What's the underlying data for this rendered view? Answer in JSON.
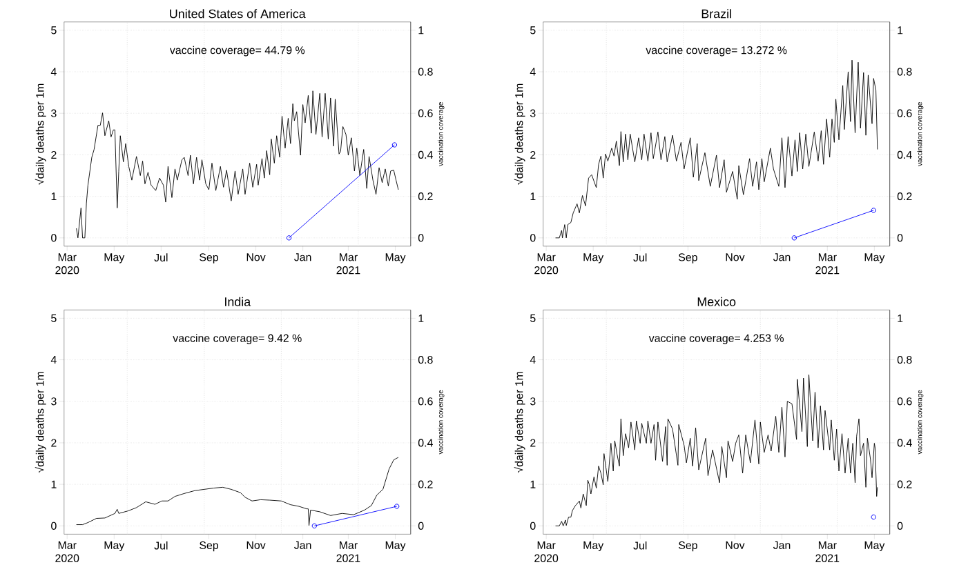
{
  "chart_data": [
    {
      "type": "line",
      "title": "United States of America",
      "ylabel": "√daily deaths per 1m",
      "y2label": "vaccination coverage",
      "annotations": [
        "vaccine coverage= 44.79 %"
      ],
      "xlim": [
        "2020-02-26",
        "2021-05-21"
      ],
      "xticks": [
        {
          "value": "2020-03-01",
          "label": "Mar 2020"
        },
        {
          "value": "2020-05-01",
          "label": "May"
        },
        {
          "value": "2020-07-01",
          "label": "Jul"
        },
        {
          "value": "2020-09-01",
          "label": "Sep"
        },
        {
          "value": "2020-11-01",
          "label": "Nov"
        },
        {
          "value": "2021-01-01",
          "label": "Jan"
        },
        {
          "value": "2021-03-01",
          "label": "Mar 2021"
        },
        {
          "value": "2021-05-01",
          "label": "May"
        }
      ],
      "ylim": [
        -0.2,
        5.2
      ],
      "yticks": [
        0,
        1,
        2,
        3,
        4,
        5
      ],
      "y2lim": [
        -0.04,
        1.04
      ],
      "y2ticks": [
        0,
        0.2,
        0.4,
        0.6,
        0.8,
        1
      ],
      "grid": "y",
      "ref_lines": [
        {
          "axis": "x",
          "value": "2020-05-18",
          "color": "#d3d3d3",
          "line_style": "dotted"
        },
        {
          "axis": "x",
          "value": "2020-08-26",
          "color": "#d3d3d3",
          "line_style": "dotted"
        },
        {
          "axis": "x",
          "value": "2020-12-04",
          "color": "#d3d3d3",
          "line_style": "dotted"
        },
        {
          "axis": "x",
          "value": "2021-03-14",
          "color": "#d3d3d3",
          "line_style": "dotted"
        }
      ],
      "series": [
        {
          "color": "#000000",
          "x": [
            "2020-03-13",
            "2020-03-15",
            "2020-03-19",
            "2020-03-21",
            "2020-03-24",
            "2020-03-26",
            "2020-03-28",
            "2020-04-02",
            "2020-04-05",
            "2020-04-10",
            "2020-04-13",
            "2020-04-16",
            "2020-04-19",
            "2020-04-24",
            "2020-04-27",
            "2020-04-30",
            "2020-05-02",
            "2020-05-05",
            "2020-05-07",
            "2020-05-09",
            "2020-05-13",
            "2020-05-16",
            "2020-05-20",
            "2020-05-24",
            "2020-05-30",
            "2020-06-04",
            "2020-06-07",
            "2020-06-10",
            "2020-06-14",
            "2020-06-18",
            "2020-06-24",
            "2020-06-29",
            "2020-07-04",
            "2020-07-07",
            "2020-07-10",
            "2020-07-15",
            "2020-07-19",
            "2020-07-22",
            "2020-07-28",
            "2020-07-31",
            "2020-08-05",
            "2020-08-08",
            "2020-08-12",
            "2020-08-16",
            "2020-08-20",
            "2020-08-23",
            "2020-08-28",
            "2020-09-01",
            "2020-09-05",
            "2020-09-10",
            "2020-09-16",
            "2020-09-20",
            "2020-09-24",
            "2020-09-30",
            "2020-10-05",
            "2020-10-09",
            "2020-10-15",
            "2020-10-18",
            "2020-10-24",
            "2020-10-28",
            "2020-11-02",
            "2020-11-04",
            "2020-11-09",
            "2020-11-12",
            "2020-11-15",
            "2020-11-19",
            "2020-11-21",
            "2020-11-25",
            "2020-11-28",
            "2020-12-02",
            "2020-12-05",
            "2020-12-09",
            "2020-12-13",
            "2020-12-16",
            "2020-12-19",
            "2020-12-21",
            "2020-12-24",
            "2020-12-29",
            "2021-01-01",
            "2021-01-04",
            "2021-01-08",
            "2021-01-12",
            "2021-01-14",
            "2021-01-18",
            "2021-01-23",
            "2021-01-26",
            "2021-01-30",
            "2021-02-03",
            "2021-02-06",
            "2021-02-10",
            "2021-02-12",
            "2021-02-17",
            "2021-02-19",
            "2021-02-22",
            "2021-02-26",
            "2021-03-01",
            "2021-03-05",
            "2021-03-09",
            "2021-03-12",
            "2021-03-16",
            "2021-03-21",
            "2021-03-25",
            "2021-03-28",
            "2021-04-02",
            "2021-04-06",
            "2021-04-10",
            "2021-04-14",
            "2021-04-18",
            "2021-04-22",
            "2021-04-25",
            "2021-04-29",
            "2021-05-02",
            "2021-05-05"
          ],
          "values": [
            0.23,
            0,
            0.72,
            0,
            0,
            0.83,
            1.27,
            1.94,
            2.13,
            2.71,
            2.71,
            3.01,
            2.46,
            2.82,
            2.43,
            2.6,
            2.6,
            0.72,
            1.6,
            2.46,
            1.83,
            2.27,
            1.72,
            1.39,
            1.96,
            1.5,
            1.85,
            1.3,
            1.58,
            1.27,
            1.14,
            1.44,
            1.27,
            0.86,
            1.72,
            0.97,
            1.66,
            1.39,
            1.88,
            1.94,
            1.5,
            1.99,
            1.3,
            1.94,
            1.39,
            1.88,
            1.3,
            1.16,
            1.8,
            1.14,
            1.72,
            1.22,
            1.63,
            0.89,
            1.61,
            1.05,
            1.66,
            1.05,
            1.8,
            1.22,
            1.77,
            1.27,
            1.91,
            1.44,
            2.1,
            1.52,
            2.38,
            1.8,
            2.46,
            1.94,
            2.93,
            2.16,
            2.88,
            2.27,
            3.23,
            2.82,
            3.04,
            1.99,
            3.21,
            2.77,
            3.43,
            2.52,
            3.54,
            2.49,
            3.48,
            2.43,
            3.48,
            2.38,
            3.37,
            2.21,
            3.34,
            2.02,
            2.08,
            2.68,
            2.49,
            1.99,
            2.41,
            1.61,
            2.16,
            1.5,
            2.13,
            1.19,
            1.96,
            1.39,
            1.05,
            1.69,
            1.33,
            1.66,
            1.25,
            1.61,
            1.63,
            1.39,
            1.16
          ]
        },
        {
          "color": "#0000ff",
          "axis": "y2",
          "marker": "circle",
          "x": [
            "2020-12-14",
            "2021-04-30"
          ],
          "values": [
            0,
            0.4479
          ]
        }
      ]
    },
    {
      "type": "line",
      "title": "Brazil",
      "ylabel": "√daily deaths per 1m",
      "y2label": "vaccination coverage",
      "annotations": [
        "vaccine coverage= 13.272 %"
      ],
      "xlim": [
        "2020-02-26",
        "2021-05-21"
      ],
      "xticks": [
        {
          "value": "2020-03-01",
          "label": "Mar 2020"
        },
        {
          "value": "2020-05-01",
          "label": "May"
        },
        {
          "value": "2020-07-01",
          "label": "Jul"
        },
        {
          "value": "2020-09-01",
          "label": "Sep"
        },
        {
          "value": "2020-11-01",
          "label": "Nov"
        },
        {
          "value": "2021-01-01",
          "label": "Jan"
        },
        {
          "value": "2021-03-01",
          "label": "Mar 2021"
        },
        {
          "value": "2021-05-01",
          "label": "May"
        }
      ],
      "ylim": [
        -0.2,
        5.2
      ],
      "yticks": [
        0,
        1,
        2,
        3,
        4,
        5
      ],
      "y2lim": [
        -0.04,
        1.04
      ],
      "y2ticks": [
        0,
        0.2,
        0.4,
        0.6,
        0.8,
        1
      ],
      "grid": "y",
      "ref_lines": [
        {
          "axis": "x",
          "value": "2020-05-18",
          "color": "#d3d3d3",
          "line_style": "dotted"
        },
        {
          "axis": "x",
          "value": "2020-08-26",
          "color": "#d3d3d3",
          "line_style": "dotted"
        },
        {
          "axis": "x",
          "value": "2020-12-04",
          "color": "#d3d3d3",
          "line_style": "dotted"
        },
        {
          "axis": "x",
          "value": "2021-03-14",
          "color": "#d3d3d3",
          "line_style": "dotted"
        }
      ],
      "series": [
        {
          "color": "#000000",
          "x": [
            "2020-03-13",
            "2020-03-18",
            "2020-03-21",
            "2020-03-22",
            "2020-03-25",
            "2020-03-27",
            "2020-03-29",
            "2020-04-02",
            "2020-04-05",
            "2020-04-10",
            "2020-04-13",
            "2020-04-17",
            "2020-04-21",
            "2020-04-25",
            "2020-04-29",
            "2020-05-05",
            "2020-05-08",
            "2020-05-11",
            "2020-05-14",
            "2020-05-17",
            "2020-05-20",
            "2020-05-25",
            "2020-05-28",
            "2020-05-31",
            "2020-06-04",
            "2020-06-06",
            "2020-06-09",
            "2020-06-12",
            "2020-06-15",
            "2020-06-18",
            "2020-06-24",
            "2020-06-29",
            "2020-07-03",
            "2020-07-06",
            "2020-07-11",
            "2020-07-15",
            "2020-07-18",
            "2020-07-24",
            "2020-07-28",
            "2020-08-02",
            "2020-08-05",
            "2020-08-12",
            "2020-08-17",
            "2020-08-23",
            "2020-08-27",
            "2020-09-04",
            "2020-09-08",
            "2020-09-13",
            "2020-09-15",
            "2020-09-23",
            "2020-09-30",
            "2020-10-08",
            "2020-10-12",
            "2020-10-18",
            "2020-10-21",
            "2020-10-29",
            "2020-11-04",
            "2020-11-06",
            "2020-11-12",
            "2020-11-20",
            "2020-11-24",
            "2020-11-29",
            "2020-12-02",
            "2020-12-06",
            "2020-12-09",
            "2020-12-17",
            "2020-12-21",
            "2020-12-28",
            "2021-01-01",
            "2021-01-05",
            "2021-01-09",
            "2021-01-14",
            "2021-01-18",
            "2021-01-21",
            "2021-01-24",
            "2021-01-28",
            "2021-02-01",
            "2021-02-05",
            "2021-02-12",
            "2021-02-17",
            "2021-02-21",
            "2021-02-24",
            "2021-02-28",
            "2021-03-04",
            "2021-03-07",
            "2021-03-10",
            "2021-03-12",
            "2021-03-16",
            "2021-03-21",
            "2021-03-23",
            "2021-03-28",
            "2021-03-31",
            "2021-04-02",
            "2021-04-06",
            "2021-04-10",
            "2021-04-13",
            "2021-04-17",
            "2021-04-20",
            "2021-04-23",
            "2021-04-28",
            "2021-04-30",
            "2021-05-03",
            "2021-05-05"
          ],
          "values": [
            0,
            0,
            0.18,
            0,
            0.32,
            0,
            0.32,
            0.37,
            0.6,
            0.82,
            0.6,
            1.02,
            0.77,
            1.44,
            1.52,
            1.21,
            1.77,
            1.97,
            1.44,
            2.02,
            1.85,
            2.16,
            1.97,
            2.33,
            1.74,
            2.56,
            1.83,
            2.5,
            1.88,
            2.5,
            1.83,
            2.41,
            1.88,
            2.5,
            1.85,
            2.53,
            1.91,
            2.55,
            1.88,
            2.44,
            1.83,
            2.47,
            1.85,
            2.3,
            1.66,
            2.41,
            1.46,
            2.27,
            1.38,
            2.05,
            1.24,
            1.99,
            1.21,
            1.88,
            1.1,
            1.6,
            0.93,
            1.74,
            1.04,
            1.91,
            1.24,
            1.83,
            1.16,
            1.91,
            1.35,
            2.16,
            1.66,
            1.24,
            2.41,
            1.21,
            2.44,
            1.49,
            2.36,
            1.6,
            2.53,
            1.66,
            2.5,
            1.72,
            2.55,
            1.85,
            2.58,
            1.77,
            2.86,
            1.94,
            2.86,
            2.3,
            3.34,
            2.36,
            3.67,
            2.61,
            4.0,
            2.8,
            4.28,
            2.53,
            4.23,
            2.64,
            3.98,
            2.47,
            3.92,
            2.75,
            3.84,
            3.56,
            2.13
          ]
        },
        {
          "color": "#0000ff",
          "axis": "y2",
          "marker": "circle",
          "x": [
            "2021-01-17",
            "2021-04-30"
          ],
          "values": [
            0,
            0.13272
          ]
        }
      ]
    },
    {
      "type": "line",
      "title": "India",
      "ylabel": "√daily deaths per 1m",
      "y2label": "vaccination coverage",
      "annotations": [
        "vaccine coverage= 9.42 %"
      ],
      "xlim": [
        "2020-02-26",
        "2021-05-21"
      ],
      "xticks": [
        {
          "value": "2020-03-01",
          "label": "Mar 2020"
        },
        {
          "value": "2020-05-01",
          "label": "May"
        },
        {
          "value": "2020-07-01",
          "label": "Jul"
        },
        {
          "value": "2020-09-01",
          "label": "Sep"
        },
        {
          "value": "2020-11-01",
          "label": "Nov"
        },
        {
          "value": "2021-01-01",
          "label": "Jan"
        },
        {
          "value": "2021-03-01",
          "label": "Mar 2021"
        },
        {
          "value": "2021-05-01",
          "label": "May"
        }
      ],
      "ylim": [
        -0.2,
        5.2
      ],
      "yticks": [
        0,
        1,
        2,
        3,
        4,
        5
      ],
      "y2lim": [
        -0.04,
        1.04
      ],
      "y2ticks": [
        0,
        0.2,
        0.4,
        0.6,
        0.8,
        1
      ],
      "grid": "y",
      "ref_lines": [
        {
          "axis": "x",
          "value": "2020-05-18",
          "color": "#d3d3d3",
          "line_style": "dotted"
        },
        {
          "axis": "x",
          "value": "2020-08-26",
          "color": "#d3d3d3",
          "line_style": "dotted"
        },
        {
          "axis": "x",
          "value": "2020-12-04",
          "color": "#d3d3d3",
          "line_style": "dotted"
        },
        {
          "axis": "x",
          "value": "2021-03-14",
          "color": "#d3d3d3",
          "line_style": "dotted"
        }
      ],
      "series": [
        {
          "color": "#000000",
          "x": [
            "2020-03-13",
            "2020-03-21",
            "2020-03-28",
            "2020-04-08",
            "2020-04-19",
            "2020-05-02",
            "2020-05-05",
            "2020-05-07",
            "2020-05-19",
            "2020-05-30",
            "2020-06-11",
            "2020-06-23",
            "2020-07-02",
            "2020-07-10",
            "2020-07-19",
            "2020-07-31",
            "2020-08-14",
            "2020-08-26",
            "2020-09-07",
            "2020-09-19",
            "2020-09-30",
            "2020-10-12",
            "2020-10-18",
            "2020-10-27",
            "2020-11-07",
            "2020-11-19",
            "2020-12-04",
            "2020-12-16",
            "2020-12-27",
            "2021-01-06",
            "2021-01-08",
            "2021-01-09",
            "2021-01-11",
            "2021-01-23",
            "2021-02-06",
            "2021-02-21",
            "2021-03-08",
            "2021-03-22",
            "2021-03-31",
            "2021-04-07",
            "2021-04-15",
            "2021-04-23",
            "2021-04-29",
            "2021-05-05"
          ],
          "values": [
            0.03,
            0.03,
            0.08,
            0.18,
            0.19,
            0.3,
            0.4,
            0.3,
            0.36,
            0.44,
            0.58,
            0.52,
            0.6,
            0.6,
            0.71,
            0.78,
            0.85,
            0.88,
            0.91,
            0.93,
            0.88,
            0.8,
            0.69,
            0.6,
            0.63,
            0.62,
            0.6,
            0.51,
            0.47,
            0.41,
            0.41,
            0.01,
            0.38,
            0.34,
            0.25,
            0.3,
            0.27,
            0.38,
            0.49,
            0.74,
            0.88,
            1.37,
            1.59,
            1.65
          ]
        },
        {
          "color": "#0000ff",
          "axis": "y2",
          "marker": "circle",
          "x": [
            "2021-01-16",
            "2021-05-03"
          ],
          "values": [
            0,
            0.0942
          ]
        }
      ]
    },
    {
      "type": "line",
      "title": "Mexico",
      "ylabel": "√daily deaths per 1m",
      "y2label": "vaccination coverage",
      "annotations": [
        "vaccine coverage= 4.253 %"
      ],
      "xlim": [
        "2020-02-26",
        "2021-05-21"
      ],
      "xticks": [
        {
          "value": "2020-03-01",
          "label": "Mar 2020"
        },
        {
          "value": "2020-05-01",
          "label": "May"
        },
        {
          "value": "2020-07-01",
          "label": "Jul"
        },
        {
          "value": "2020-09-01",
          "label": "Sep"
        },
        {
          "value": "2020-11-01",
          "label": "Nov"
        },
        {
          "value": "2021-01-01",
          "label": "Jan"
        },
        {
          "value": "2021-03-01",
          "label": "Mar 2021"
        },
        {
          "value": "2021-05-01",
          "label": "May"
        }
      ],
      "ylim": [
        -0.2,
        5.2
      ],
      "yticks": [
        0,
        1,
        2,
        3,
        4,
        5
      ],
      "y2lim": [
        -0.04,
        1.04
      ],
      "y2ticks": [
        0,
        0.2,
        0.4,
        0.6,
        0.8,
        1
      ],
      "grid": "y",
      "ref_lines": [
        {
          "axis": "x",
          "value": "2020-05-18",
          "color": "#d3d3d3",
          "line_style": "dotted"
        },
        {
          "axis": "x",
          "value": "2020-08-26",
          "color": "#d3d3d3",
          "line_style": "dotted"
        },
        {
          "axis": "x",
          "value": "2020-12-04",
          "color": "#d3d3d3",
          "line_style": "dotted"
        },
        {
          "axis": "x",
          "value": "2021-03-14",
          "color": "#d3d3d3",
          "line_style": "dotted"
        }
      ],
      "series": [
        {
          "color": "#000000",
          "x": [
            "2020-03-13",
            "2020-03-18",
            "2020-03-21",
            "2020-03-23",
            "2020-03-26",
            "2020-03-27",
            "2020-03-30",
            "2020-04-02",
            "2020-04-04",
            "2020-04-08",
            "2020-04-13",
            "2020-04-15",
            "2020-04-18",
            "2020-04-22",
            "2020-04-24",
            "2020-04-26",
            "2020-04-28",
            "2020-05-02",
            "2020-05-05",
            "2020-05-08",
            "2020-05-11",
            "2020-05-14",
            "2020-05-15",
            "2020-05-20",
            "2020-05-24",
            "2020-05-27",
            "2020-05-29",
            "2020-06-01",
            "2020-06-04",
            "2020-06-06",
            "2020-06-09",
            "2020-06-12",
            "2020-06-16",
            "2020-06-19",
            "2020-06-24",
            "2020-06-26",
            "2020-07-01",
            "2020-07-03",
            "2020-07-09",
            "2020-07-11",
            "2020-07-15",
            "2020-07-19",
            "2020-07-21",
            "2020-07-24",
            "2020-07-28",
            "2020-07-30",
            "2020-08-03",
            "2020-08-05",
            "2020-08-06",
            "2020-08-12",
            "2020-08-19",
            "2020-08-20",
            "2020-08-27",
            "2020-08-30",
            "2020-09-04",
            "2020-09-07",
            "2020-09-11",
            "2020-09-15",
            "2020-09-24",
            "2020-09-27",
            "2020-10-03",
            "2020-10-12",
            "2020-10-15",
            "2020-10-21",
            "2020-10-23",
            "2020-10-29",
            "2020-11-02",
            "2020-11-06",
            "2020-11-11",
            "2020-11-15",
            "2020-11-21",
            "2020-11-27",
            "2020-12-02",
            "2020-12-04",
            "2020-12-09",
            "2020-12-14",
            "2020-12-18",
            "2020-12-24",
            "2020-12-28",
            "2021-01-01",
            "2021-01-05",
            "2021-01-08",
            "2021-01-14",
            "2021-01-20",
            "2021-01-21",
            "2021-01-27",
            "2021-01-29",
            "2021-02-03",
            "2021-02-05",
            "2021-02-10",
            "2021-02-13",
            "2021-02-17",
            "2021-02-20",
            "2021-02-24",
            "2021-02-26",
            "2021-03-04",
            "2021-03-06",
            "2021-03-10",
            "2021-03-13",
            "2021-03-16",
            "2021-03-20",
            "2021-03-24",
            "2021-03-28",
            "2021-03-31",
            "2021-04-03",
            "2021-04-06",
            "2021-04-08",
            "2021-04-11",
            "2021-04-13",
            "2021-04-17",
            "2021-04-20",
            "2021-04-22",
            "2021-04-26",
            "2021-04-28",
            "2021-05-01",
            "2021-05-02",
            "2021-05-04",
            "2021-05-05"
          ],
          "values": [
            0,
            0,
            0.11,
            0,
            0.14,
            0.01,
            0.21,
            0.21,
            0.37,
            0.49,
            0.6,
            0.43,
            0.77,
            0.49,
            1.1,
            0.99,
            0.77,
            1.18,
            0.91,
            1.44,
            1.27,
            0.99,
            1.74,
            1.07,
            1.99,
            1.32,
            2.05,
            1.72,
            1.44,
            2.58,
            1.69,
            2.22,
            1.88,
            2.5,
            1.83,
            2.53,
            1.99,
            2.47,
            1.99,
            2.53,
            1.99,
            2.44,
            1.58,
            2.5,
            1.88,
            1.55,
            2.39,
            1.46,
            2.58,
            2.33,
            1.46,
            2.44,
            1.94,
            1.52,
            2.11,
            1.44,
            2.36,
            1.35,
            2.11,
            1.21,
            1.83,
            1.04,
            1.91,
            1.16,
            2.05,
            1.55,
            1.99,
            2.19,
            1.27,
            2.19,
            1.52,
            2.55,
            1.49,
            2.5,
            1.77,
            2.19,
            1.8,
            2.64,
            1.77,
            2.86,
            1.66,
            3.0,
            2.94,
            2.08,
            3.53,
            2.27,
            3.56,
            1.91,
            3.64,
            2.05,
            3.22,
            1.88,
            2.89,
            1.83,
            2.78,
            1.83,
            2.55,
            1.58,
            2.33,
            1.32,
            2.22,
            1.27,
            2.11,
            1.27,
            1.99,
            1.04,
            2.16,
            2.58,
            1.69,
            1.99,
            0.93,
            2.11,
            1.6,
            1.16,
            1.99,
            1.88,
            0.71,
            0.93
          ]
        },
        {
          "color": "#0000ff",
          "axis": "y2",
          "marker": "circle",
          "x": [
            "2021-04-30"
          ],
          "values": [
            0.04253
          ]
        }
      ]
    }
  ]
}
